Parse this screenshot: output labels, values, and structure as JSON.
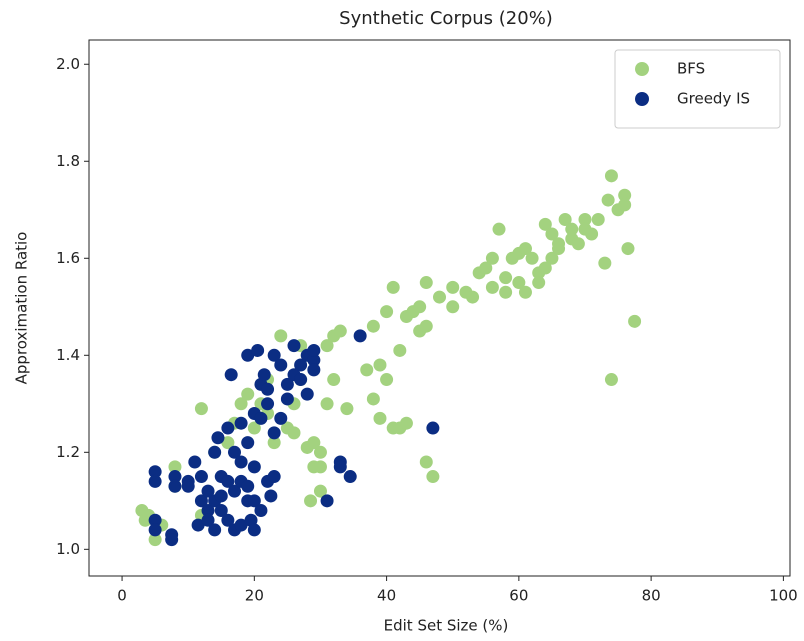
{
  "chart_data": {
    "type": "scatter",
    "title": "Synthetic Corpus (20%)",
    "xlabel": "Edit Set Size (%)",
    "ylabel": "Approximation Ratio",
    "xlim": [
      -5,
      101
    ],
    "ylim": [
      0.945,
      2.05
    ],
    "xticks": [
      0,
      20,
      40,
      60,
      80,
      100
    ],
    "yticks": [
      {
        "value": 1.0,
        "label": "1.0"
      },
      {
        "value": 1.2,
        "label": "1.2"
      },
      {
        "value": 1.4,
        "label": "1.4"
      },
      {
        "value": 1.6,
        "label": "1.6"
      },
      {
        "value": 1.8,
        "label": "1.8"
      },
      {
        "value": 2.0,
        "label": "2.0"
      }
    ],
    "grid": false,
    "legend": "upper right",
    "series": [
      {
        "name": "BFS",
        "color": "#a3d27f",
        "x": [
          3,
          3.5,
          5,
          4,
          6,
          8,
          8,
          12,
          12,
          14,
          16,
          17,
          18,
          19,
          20,
          21,
          22,
          22,
          23,
          24,
          25,
          26,
          26,
          27,
          27,
          28,
          28,
          28.5,
          29,
          29,
          30,
          30,
          30,
          31,
          31,
          32,
          32,
          33,
          34,
          37,
          38,
          38,
          39,
          39,
          40,
          40,
          41,
          41,
          42,
          42,
          43,
          43,
          44,
          45,
          45,
          46,
          46,
          46,
          47,
          48,
          50,
          50,
          52,
          53,
          54,
          55,
          56,
          56,
          57,
          58,
          58,
          59,
          60,
          60,
          61,
          61,
          62,
          63,
          63,
          64,
          64,
          65,
          65,
          66,
          66,
          67,
          68,
          68,
          69,
          70,
          70,
          71,
          72,
          73,
          73.5,
          74,
          74,
          75,
          76,
          76,
          76.5,
          77.5
        ],
        "values": [
          1.08,
          1.06,
          1.02,
          1.07,
          1.05,
          1.17,
          1.13,
          1.29,
          1.07,
          1.2,
          1.22,
          1.26,
          1.3,
          1.32,
          1.25,
          1.3,
          1.35,
          1.28,
          1.22,
          1.44,
          1.25,
          1.3,
          1.24,
          1.35,
          1.42,
          1.4,
          1.21,
          1.1,
          1.17,
          1.22,
          1.2,
          1.17,
          1.12,
          1.42,
          1.3,
          1.44,
          1.35,
          1.45,
          1.29,
          1.37,
          1.31,
          1.46,
          1.38,
          1.27,
          1.35,
          1.49,
          1.25,
          1.54,
          1.41,
          1.25,
          1.48,
          1.26,
          1.49,
          1.45,
          1.5,
          1.46,
          1.18,
          1.55,
          1.15,
          1.52,
          1.5,
          1.54,
          1.53,
          1.52,
          1.57,
          1.58,
          1.6,
          1.54,
          1.66,
          1.56,
          1.53,
          1.6,
          1.61,
          1.55,
          1.53,
          1.62,
          1.6,
          1.57,
          1.55,
          1.58,
          1.67,
          1.65,
          1.6,
          1.62,
          1.63,
          1.68,
          1.66,
          1.64,
          1.63,
          1.68,
          1.66,
          1.65,
          1.68,
          1.59,
          1.72,
          1.77,
          1.35,
          1.7,
          1.73,
          1.71,
          1.62,
          1.47
        ]
      },
      {
        "name": "Greedy IS",
        "color": "#0b2d83",
        "x": [
          5,
          5,
          5,
          5,
          7.5,
          7.5,
          8,
          8,
          10,
          10,
          11,
          11.5,
          12,
          12,
          13,
          13,
          13,
          14,
          14,
          14,
          14.5,
          15,
          15,
          15,
          16,
          16,
          16,
          16.5,
          17,
          17,
          17,
          18,
          18,
          18,
          18,
          19,
          19,
          19,
          19,
          19.5,
          20,
          20,
          20,
          20,
          20.5,
          21,
          21,
          21,
          21.5,
          22,
          22,
          22,
          22.5,
          23,
          23,
          23,
          24,
          24,
          25,
          25,
          26,
          26,
          27,
          27,
          28,
          28,
          29,
          29,
          29,
          33,
          33,
          31,
          34.5,
          36,
          47
        ],
        "values": [
          1.16,
          1.14,
          1.06,
          1.04,
          1.03,
          1.02,
          1.15,
          1.13,
          1.14,
          1.13,
          1.18,
          1.05,
          1.1,
          1.15,
          1.08,
          1.12,
          1.06,
          1.04,
          1.1,
          1.2,
          1.23,
          1.15,
          1.11,
          1.08,
          1.14,
          1.06,
          1.25,
          1.36,
          1.2,
          1.12,
          1.04,
          1.18,
          1.14,
          1.26,
          1.05,
          1.4,
          1.22,
          1.13,
          1.1,
          1.06,
          1.28,
          1.17,
          1.1,
          1.04,
          1.41,
          1.34,
          1.27,
          1.08,
          1.36,
          1.33,
          1.3,
          1.14,
          1.11,
          1.4,
          1.24,
          1.15,
          1.38,
          1.27,
          1.31,
          1.34,
          1.42,
          1.36,
          1.35,
          1.38,
          1.32,
          1.4,
          1.39,
          1.41,
          1.37,
          1.18,
          1.17,
          1.1,
          1.15,
          1.44,
          1.25
        ]
      }
    ]
  }
}
